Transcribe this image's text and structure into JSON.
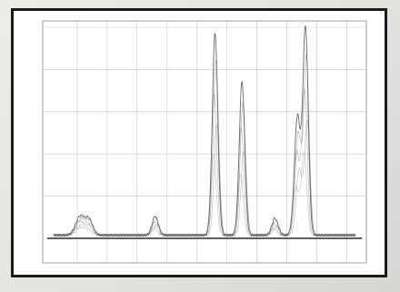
{
  "colors": {
    "frame": "#1b1b1b",
    "grid": "#c9c9c9",
    "trace": "#5a5a5a",
    "baseline": "#2c2c2c",
    "plot_border": "#888888"
  },
  "chart_data": {
    "type": "line",
    "title": "",
    "xlabel": "",
    "ylabel": "",
    "xlim": [
      0,
      10.5
    ],
    "ylim": [
      0,
      10
    ],
    "grid": true,
    "x_ticks": [
      0,
      1,
      2,
      3,
      4,
      5,
      6,
      7,
      8,
      9,
      10
    ],
    "y_ticks": [
      0,
      2,
      4,
      6,
      8,
      10
    ],
    "peaks": [
      {
        "center": 1.1,
        "height": 0.9,
        "width": 0.15
      },
      {
        "center": 1.4,
        "height": 0.7,
        "width": 0.12
      },
      {
        "center": 3.6,
        "height": 0.9,
        "width": 0.1
      },
      {
        "center": 5.6,
        "height": 9.6,
        "width": 0.09
      },
      {
        "center": 6.5,
        "height": 7.3,
        "width": 0.09
      },
      {
        "center": 7.6,
        "height": 0.8,
        "width": 0.1
      },
      {
        "center": 8.35,
        "height": 5.6,
        "width": 0.1
      },
      {
        "center": 8.62,
        "height": 9.8,
        "width": 0.09
      }
    ]
  }
}
